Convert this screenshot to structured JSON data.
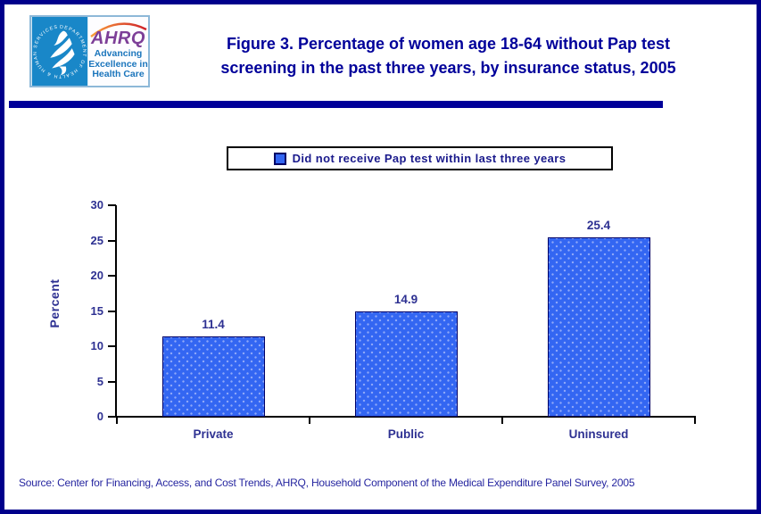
{
  "window": {
    "background": "#FFFFFF",
    "border_color": "#00008B"
  },
  "header": {
    "logo": {
      "hhs_circle_text": "DEPARTMENT OF HEALTH & HUMAN SERVICES • USA",
      "hhs_bg_color": "#1987C8",
      "ahrq_acronym": "AHRQ",
      "ahrq_color": "#7D3F98",
      "tagline": [
        "Advancing",
        "Excellence in",
        "Health Care"
      ],
      "tagline_color": "#1B75BC"
    },
    "title_line1": "Figure 3. Percentage of women age 18-64 without Pap test",
    "title_line2": "screening in the past three years, by insurance status, 2005",
    "title_color": "#00009A",
    "divider_color": "#000099"
  },
  "chart_data": {
    "type": "bar",
    "title": "Figure 3. Percentage of women age 18-64 without Pap test screening in the past three years, by insurance status, 2005",
    "legend_label": "Did not receive Pap test within last three years",
    "legend_position": "top",
    "categories": [
      "Private",
      "Public",
      "Uninsured"
    ],
    "values": [
      11.4,
      14.9,
      25.4
    ],
    "xlabel": "",
    "ylabel": "Percent",
    "ylim": [
      0,
      30
    ],
    "yticks": [
      0,
      5,
      10,
      15,
      20,
      25,
      30
    ],
    "grid": false,
    "bar_color": "#3366F2",
    "bar_dot_color": "#8FA9F8",
    "bar_border_color": "#000066",
    "text_color": "#2E3192",
    "axis_color": "#000000"
  },
  "footer": {
    "source": "Source: Center for Financing, Access, and Cost Trends, AHRQ, Household Component of the Medical Expenditure Panel Survey, 2005"
  }
}
